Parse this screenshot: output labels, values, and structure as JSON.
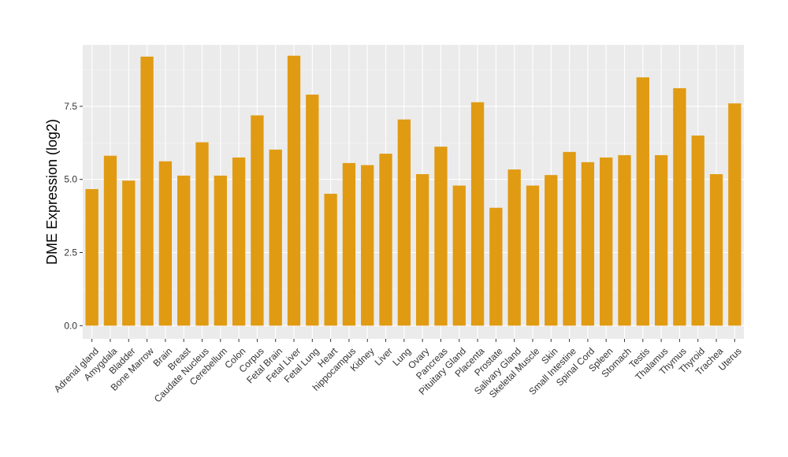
{
  "chart_data": {
    "type": "bar",
    "title": "",
    "xlabel": "",
    "ylabel": "DME Expression (log2)",
    "ylim": [
      -0.45,
      9.6
    ],
    "yticks": [
      0.0,
      2.5,
      5.0,
      7.5
    ],
    "ytick_labels": [
      "0.0",
      "2.5",
      "5.0",
      "7.5"
    ],
    "grid": true,
    "bar_color": "#E09B13",
    "panel_color": "#EBEBEB",
    "categories": [
      "Adrenal gland",
      "Amygdala",
      "Bladder",
      "Bone Marrow",
      "Brain",
      "Breast",
      "Caudate Nucleus",
      "Cerebellum",
      "Colon",
      "Corpus",
      "Fetal Brain",
      "Fetal Liver",
      "Fetal Lung",
      "Heart",
      "hippocampus",
      "Kidney",
      "Liver",
      "Lung",
      "Ovary",
      "Pancreas",
      "Pituitary Gland",
      "Placenta",
      "Prostate",
      "Salivary Gland",
      "Skeletal Muscle",
      "Skin",
      "Small Intestine",
      "Spinal Cord",
      "Spleen",
      "Stomach",
      "Testis",
      "Thalamus",
      "Thymus",
      "Thyroid",
      "Trachea",
      "Uterus"
    ],
    "values": [
      4.67,
      5.81,
      4.96,
      9.2,
      5.62,
      5.13,
      6.27,
      5.13,
      5.75,
      7.19,
      6.02,
      9.23,
      7.9,
      4.51,
      5.56,
      5.49,
      5.88,
      7.05,
      5.18,
      6.12,
      4.79,
      7.64,
      4.03,
      5.34,
      4.79,
      5.15,
      5.94,
      5.59,
      5.75,
      5.83,
      8.49,
      5.83,
      8.12,
      6.5,
      5.18,
      7.6
    ]
  }
}
